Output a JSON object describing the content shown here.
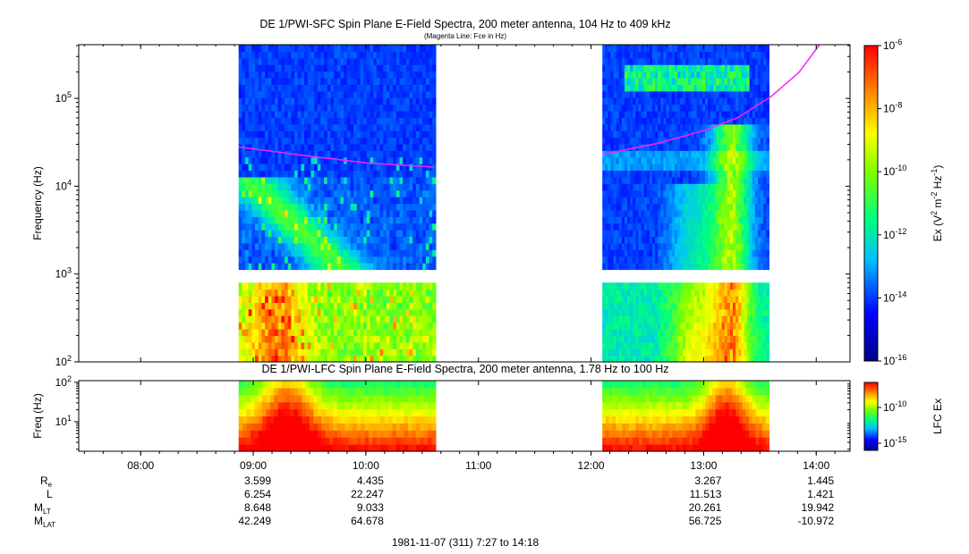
{
  "titles": {
    "sfc": "DE 1/PWI-SFC  Spin Plane E-Field Spectra, 200 meter antenna, 104 Hz to 409 kHz",
    "sfc_note": "(Magenta Line: Fce in Hz)",
    "lfc": "DE 1/PWI-LFC  Spin Plane E-Field Spectra, 200 meter antenna, 1.78 Hz to 100 Hz"
  },
  "footer": "1981-11-07 (311) 7:27 to 14:18",
  "colors": {
    "fce_line": "#ff22ff",
    "frame": "#000000"
  },
  "chart_data": [
    {
      "type": "heatmap",
      "name": "SFC",
      "ylabel": "Frequency (Hz)",
      "y_scale": "log",
      "ylim": [
        100,
        409000
      ],
      "y_ticks": [
        "10^2",
        "10^3",
        "10^4",
        "10^5"
      ],
      "x_range_hours": [
        7.45,
        14.3
      ],
      "data_intervals_hours": [
        [
          8.87,
          10.62
        ],
        [
          12.1,
          13.58
        ]
      ],
      "colorbar": {
        "label": "Ex (V^2 m^-2 Hz^-1)",
        "scale": "log",
        "range": [
          1e-16,
          1e-06
        ],
        "ticks": [
          "10^-6",
          "10^-8",
          "10^-10",
          "10^-12",
          "10^-14",
          "10^-16"
        ]
      },
      "fce_curve": {
        "segment_1": {
          "x_hours": [
            8.87,
            9.5,
            10.0,
            10.6
          ],
          "y_hz": [
            28000,
            22000,
            18500,
            16500
          ]
        },
        "segment_2": {
          "x_hours": [
            12.1,
            12.6,
            13.0,
            13.3,
            13.6,
            13.85,
            14.03
          ],
          "y_hz": [
            23000,
            31000,
            43000,
            60000,
            105000,
            200000,
            420000
          ]
        }
      }
    },
    {
      "type": "heatmap",
      "name": "LFC",
      "ylabel": "Freq (Hz)",
      "y_scale": "log",
      "ylim": [
        1.78,
        100
      ],
      "y_ticks": [
        "10^1",
        "10^2"
      ],
      "colorbar": {
        "label": "LFC Ex",
        "scale": "log",
        "ticks": [
          "10^-10",
          "10^-15"
        ]
      }
    }
  ],
  "x_axis": {
    "tick_labels": [
      "08:00",
      "09:00",
      "10:00",
      "11:00",
      "12:00",
      "13:00",
      "14:00"
    ],
    "tick_hours": [
      8,
      9,
      10,
      11,
      12,
      13,
      14
    ]
  },
  "ephemeris": {
    "labels": [
      "R",
      "L",
      "M",
      "M"
    ],
    "label_subscripts": [
      "e",
      "",
      "LT",
      "LAT"
    ],
    "columns": [
      {
        "hour": 9,
        "values": [
          "3.599",
          "6.254",
          "8.648",
          "42.249"
        ]
      },
      {
        "hour": 10,
        "values": [
          "4.435",
          "22.247",
          "9.033",
          "64.678"
        ]
      },
      {
        "hour": 11,
        "values": [
          "",
          "",
          "",
          ""
        ]
      },
      {
        "hour": 12,
        "values": [
          "",
          "",
          "",
          ""
        ]
      },
      {
        "hour": 13,
        "values": [
          "3.267",
          "11.513",
          "20.261",
          "56.725"
        ]
      },
      {
        "hour": 14,
        "values": [
          "1.445",
          "1.421",
          "19.942",
          "-10.972"
        ]
      }
    ]
  }
}
